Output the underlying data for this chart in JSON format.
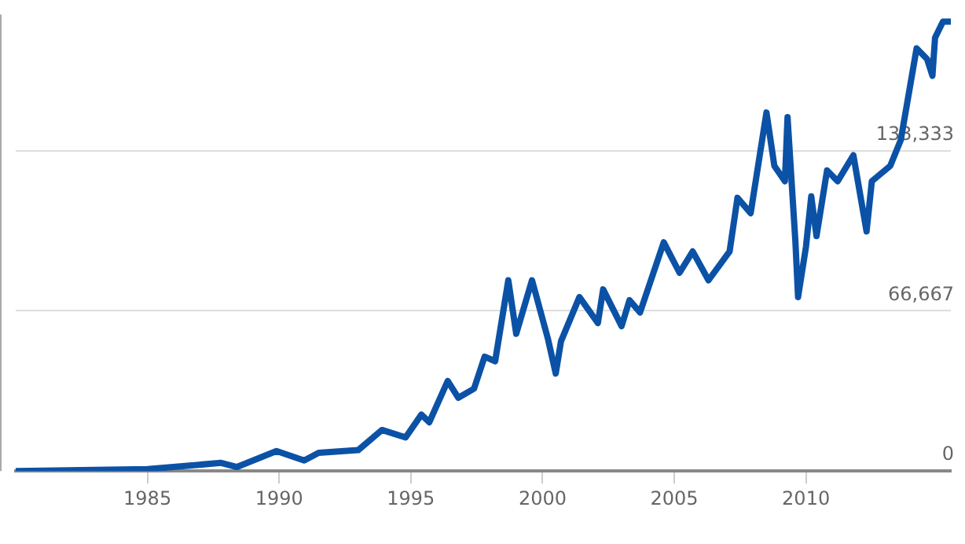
{
  "chart_data": {
    "type": "line",
    "xlim": [
      1980,
      2015.5
    ],
    "xticks": [
      1985,
      1990,
      1995,
      2000,
      2005,
      2010
    ],
    "ylim": [
      0,
      190000
    ],
    "yticks": [
      0,
      {
        "value": 66667,
        "label": "66,667"
      },
      {
        "value": 133333,
        "label": "133,333"
      }
    ],
    "grid": "y",
    "legend": false,
    "marker": "none",
    "line_style": "solid",
    "series": [
      {
        "color": "#0b52a6",
        "x": [
          1980,
          1985,
          1987.8,
          1988.4,
          1989.9,
          1990.95,
          1991.5,
          1993,
          1993.9,
          1994.8,
          1995.4,
          1995.7,
          1996.4,
          1996.8,
          1997.4,
          1997.8,
          1998.2,
          1998.7,
          1999,
          1999.6,
          2000.2,
          2000.5,
          2000.7,
          2001.4,
          2002.1,
          2002.3,
          2003,
          2003.3,
          2003.7,
          2004.6,
          2005.2,
          2005.7,
          2006.3,
          2007.1,
          2007.4,
          2007.9,
          2008.5,
          2008.8,
          2009.2,
          2009.3,
          2009.6,
          2009.7,
          2010,
          2010.2,
          2010.4,
          2010.8,
          2011.2,
          2011.8,
          2012.3,
          2012.5,
          2013.2,
          2013.6,
          2014.2,
          2014.6,
          2014.8,
          2014.9,
          2015.2,
          2015.5
        ],
        "values": [
          0,
          800,
          3400,
          1700,
          8300,
          4400,
          7600,
          8700,
          17100,
          14000,
          23500,
          20300,
          37500,
          30500,
          34300,
          47600,
          45700,
          79400,
          57100,
          79400,
          55200,
          40600,
          54000,
          72400,
          61600,
          75600,
          60300,
          71100,
          66000,
          95200,
          82500,
          91400,
          79400,
          91400,
          113700,
          107300,
          149200,
          127000,
          120600,
          147300,
          95200,
          72400,
          93300,
          114300,
          97800,
          125100,
          120600,
          131400,
          99700,
          120600,
          127000,
          137800,
          175900,
          171400,
          164500,
          180300,
          187000,
          187000
        ]
      }
    ]
  }
}
